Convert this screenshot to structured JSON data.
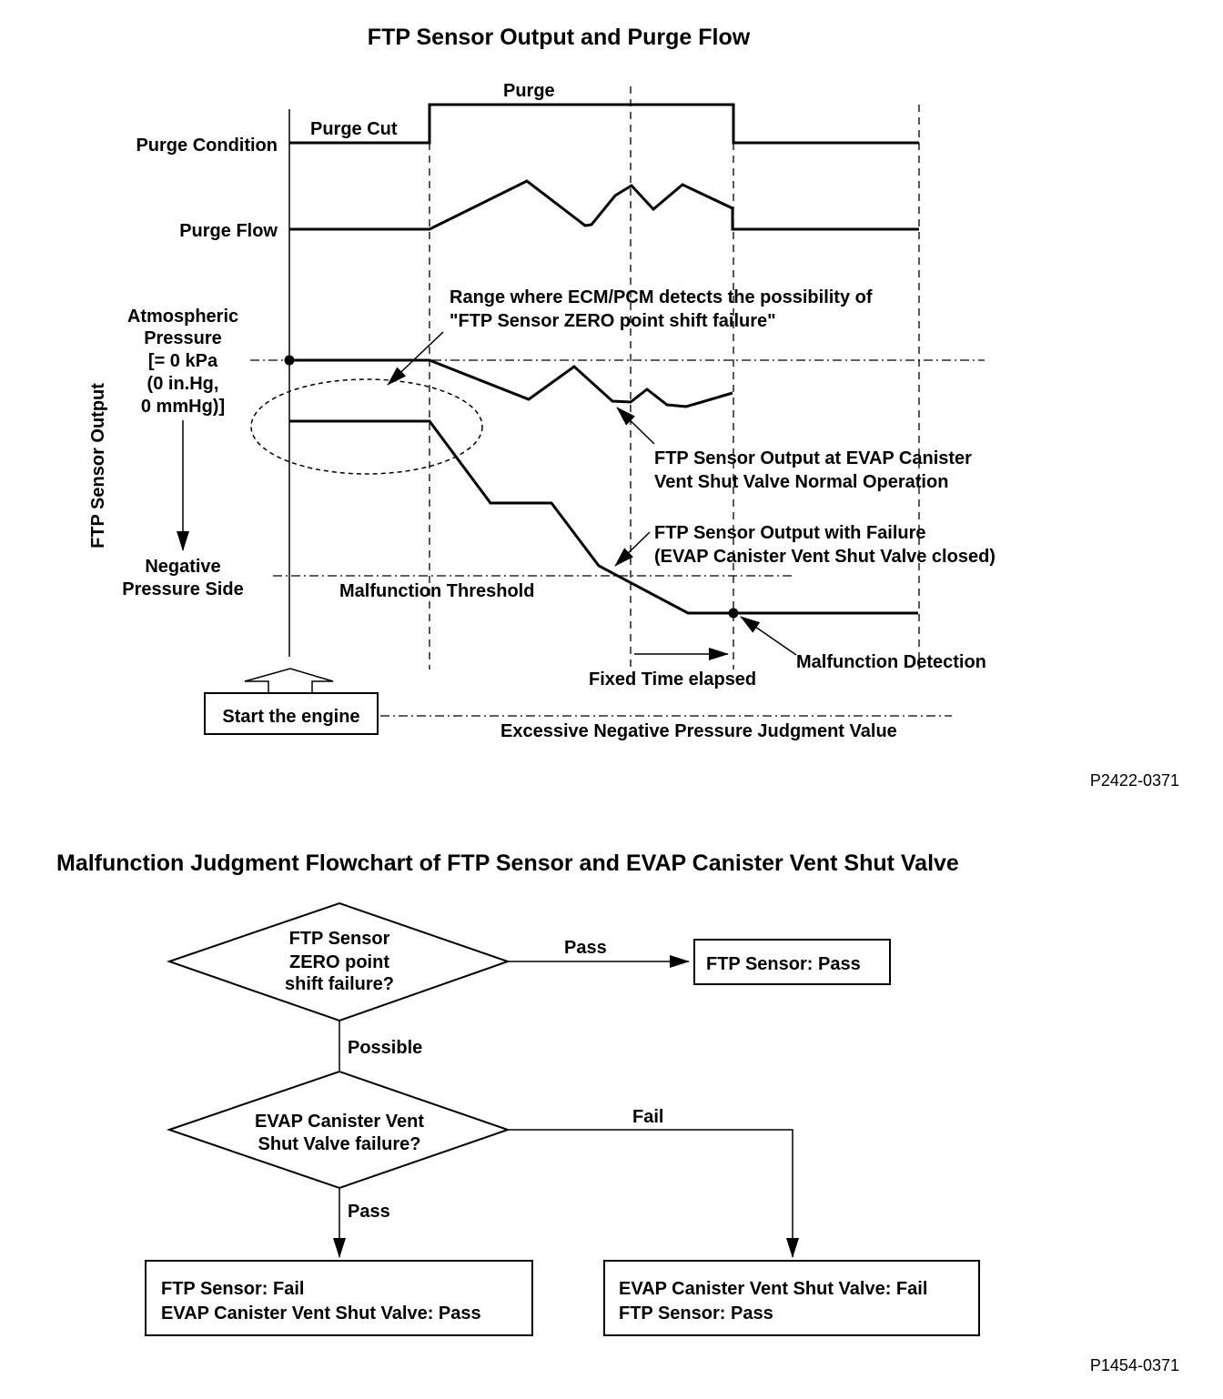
{
  "timing_chart": {
    "title": "FTP Sensor Output and Purge Flow",
    "purge_condition_label": "Purge Condition",
    "purge_flow_label": "Purge Flow",
    "purge_cut_label": "Purge Cut",
    "purge_label": "Purge",
    "y_axis_label": "FTP Sensor Output",
    "atmospheric_lines": [
      "Atmospheric",
      "Pressure",
      "[= 0 kPa",
      "(0 in.Hg,",
      "0 mmHg)]"
    ],
    "negative_lines": [
      "Negative",
      "Pressure Side"
    ],
    "range_note": [
      "Range where ECM/PCM detects the possibility of",
      "\"FTP Sensor ZERO point shift failure\""
    ],
    "normal_note": [
      "FTP Sensor Output at EVAP Canister",
      "Vent Shut Valve Normal Operation"
    ],
    "failure_note": [
      "FTP Sensor Output with Failure",
      "(EVAP Canister Vent Shut Valve closed)"
    ],
    "malfunction_threshold": "Malfunction Threshold",
    "malfunction_detection": "Malfunction Detection",
    "fixed_time": "Fixed Time elapsed",
    "start_engine": "Start the engine",
    "excessive_value": "Excessive Negative Pressure Judgment Value",
    "figure_code": "P2422-0371"
  },
  "flowchart": {
    "title": "Malfunction Judgment Flowchart of FTP Sensor and EVAP Canister Vent Shut Valve",
    "decision1": [
      "FTP Sensor",
      "ZERO point",
      "shift failure?"
    ],
    "decision1_pass": "Pass",
    "decision1_possible": "Possible",
    "result_pass": "FTP Sensor: Pass",
    "decision2": [
      "EVAP Canister Vent",
      "Shut Valve failure?"
    ],
    "decision2_fail": "Fail",
    "decision2_pass": "Pass",
    "result_left": [
      "FTP Sensor: Fail",
      "EVAP Canister Vent Shut Valve: Pass"
    ],
    "result_right": [
      "EVAP Canister Vent Shut Valve: Fail",
      "FTP Sensor: Pass"
    ],
    "figure_code": "P1454-0371"
  }
}
